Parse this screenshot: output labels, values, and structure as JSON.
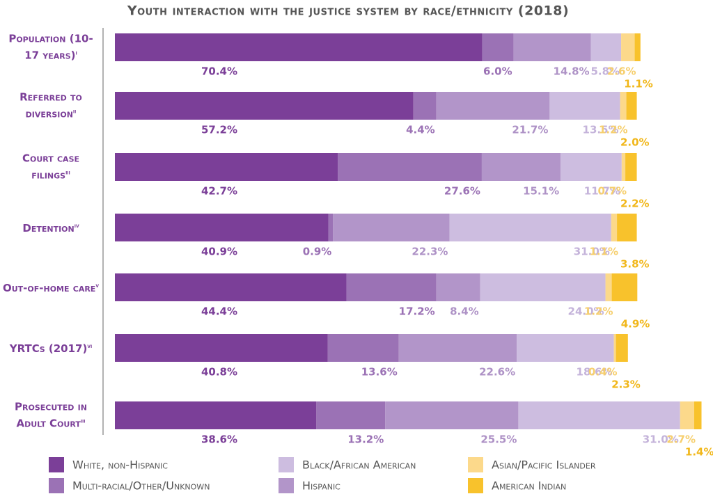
{
  "chart_data": {
    "type": "stacked-bar-horizontal",
    "title": "Youth interaction with the justice system by race/ethnicity (2018)",
    "categories": [
      "Population (10-17 years)",
      "Referred to diversion",
      "Court case filings",
      "Detention",
      "Out-of-home care",
      "YRTCs (2017)",
      "Prosecuted in Adult Court"
    ],
    "category_notes": [
      "i",
      "ii",
      "iii",
      "iv",
      "v",
      "vi",
      "iii"
    ],
    "xlim": [
      0,
      113
    ],
    "series": [
      {
        "name": "White, non-Hispanic",
        "color": "#7b3f98",
        "label_color": "#7b3f98",
        "values": [
          70.4,
          57.2,
          42.7,
          40.9,
          44.4,
          40.8,
          38.6
        ],
        "value_labels": [
          "70.4%",
          "57.2%",
          "42.7%",
          "40.9%",
          "44.4%",
          "40.8%",
          "38.6%"
        ]
      },
      {
        "name": "Multi-racial/Other/Unknown",
        "color": "#9b72b5",
        "label_color": "#9b72b5",
        "values": [
          6.0,
          4.4,
          27.6,
          0.9,
          17.2,
          13.6,
          13.2
        ],
        "value_labels": [
          "6.0%",
          "4.4%",
          "27.6%",
          "0.9%",
          "17.2%",
          "13.6%",
          "13.2%"
        ]
      },
      {
        "name": "Hispanic",
        "color": "#b295c9",
        "label_color": "#ae92c6",
        "values": [
          14.8,
          21.7,
          15.1,
          22.3,
          8.4,
          22.6,
          25.5
        ],
        "value_labels": [
          "14.8%",
          "21.7%",
          "15.1%",
          "22.3%",
          "8.4%",
          "22.6%",
          "25.5%"
        ]
      },
      {
        "name": "Black/African American",
        "color": "#cdbde0",
        "label_color": "#c4b3da",
        "values": [
          5.8,
          13.5,
          11.7,
          31.0,
          24.0,
          18.6,
          31.0
        ],
        "value_labels": [
          "5.8%",
          "13.5%",
          "11.7%",
          "31.0%",
          "24.0%",
          "18.6%",
          "31.0%"
        ]
      },
      {
        "name": "Asian/Pacific Islander",
        "color": "#fcd98b",
        "label_color": "#f6cf6e",
        "values": [
          2.6,
          1.2,
          0.7,
          1.1,
          1.2,
          0.4,
          2.7
        ],
        "value_labels": [
          "2.6%",
          "1.2%",
          "0.7%",
          "1.1%",
          "1.2%",
          "0.4%",
          "2.7%"
        ]
      },
      {
        "name": "American Indian",
        "color": "#f8c22c",
        "label_color": "#f1b71a",
        "values": [
          1.1,
          2.0,
          2.2,
          3.8,
          4.9,
          2.3,
          1.4
        ],
        "value_labels": [
          "1.1%",
          "2.0%",
          "2.2%",
          "3.8%",
          "4.9%",
          "2.3%",
          "1.4%"
        ]
      }
    ]
  }
}
